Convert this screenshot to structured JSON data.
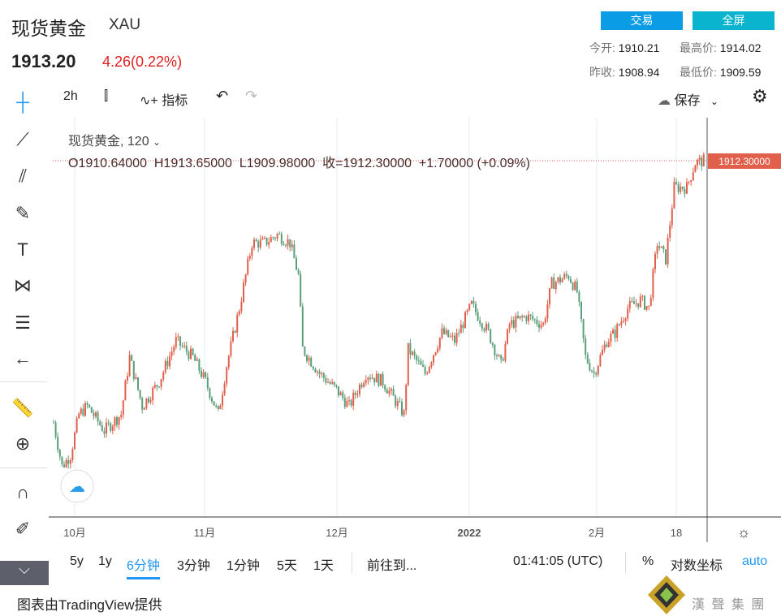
{
  "header": {
    "title": "现货黄金",
    "symbol": "XAU",
    "price": "1913.20",
    "change": "4.26(0.22%)",
    "trade_button": "交易",
    "fullscreen_button": "全屏",
    "stats": [
      {
        "label": "今开:",
        "value": "1910.21"
      },
      {
        "label": "最高价:",
        "value": "1914.02"
      },
      {
        "label": "昨收:",
        "value": "1908.94"
      },
      {
        "label": "最低价:",
        "value": "1909.59"
      }
    ]
  },
  "toolbar": {
    "interval": "2h",
    "indicators": "指标",
    "save": "保存"
  },
  "legend": {
    "title": "现货黄金, 120",
    "ohlc": "O1910.64000  H1913.65000  L1909.98000  收=1912.30000  +1.70000 (+0.09%)"
  },
  "price_label": "1912.30000",
  "x_labels": [
    "10月",
    "11月",
    "12月",
    "2022",
    "2月",
    "18"
  ],
  "bottom": {
    "ranges": [
      "5y",
      "1y",
      "6分钟",
      "3分钟",
      "1分钟",
      "5天",
      "1天"
    ],
    "active": "6分钟",
    "goto": "前往到...",
    "time": "01:41:05 (UTC)",
    "percent": "%",
    "log": "对数坐标",
    "auto": "auto"
  },
  "footer": {
    "credit": "图表由TradingView提供",
    "logo": "漢 聲 集 團"
  },
  "colors": {
    "up": "#e0604c",
    "down": "#5a9e7a",
    "accent": "#2196f3"
  },
  "chart_data": {
    "type": "candlestick",
    "note": "x = days since Oct 1 2021, y = approximate close price",
    "path": [
      [
        -5,
        1752
      ],
      [
        -3,
        1725
      ],
      [
        -1,
        1732
      ],
      [
        1,
        1757
      ],
      [
        3,
        1762
      ],
      [
        7,
        1747
      ],
      [
        11,
        1757
      ],
      [
        13,
        1792
      ],
      [
        16,
        1762
      ],
      [
        20,
        1777
      ],
      [
        24,
        1802
      ],
      [
        28,
        1792
      ],
      [
        31,
        1777
      ],
      [
        34,
        1757
      ],
      [
        36,
        1787
      ],
      [
        39,
        1822
      ],
      [
        42,
        1862
      ],
      [
        45,
        1862
      ],
      [
        48,
        1867
      ],
      [
        51,
        1862
      ],
      [
        53,
        1842
      ],
      [
        54,
        1797
      ],
      [
        58,
        1782
      ],
      [
        62,
        1772
      ],
      [
        65,
        1762
      ],
      [
        69,
        1782
      ],
      [
        73,
        1777
      ],
      [
        78,
        1757
      ],
      [
        79,
        1797
      ],
      [
        83,
        1782
      ],
      [
        87,
        1807
      ],
      [
        90,
        1802
      ],
      [
        94,
        1824
      ],
      [
        98,
        1807
      ],
      [
        101,
        1787
      ],
      [
        103,
        1812
      ],
      [
        107,
        1817
      ],
      [
        111,
        1812
      ],
      [
        113,
        1837
      ],
      [
        117,
        1842
      ],
      [
        119,
        1832
      ],
      [
        121,
        1792
      ],
      [
        123,
        1782
      ],
      [
        126,
        1802
      ],
      [
        128,
        1807
      ],
      [
        131,
        1822
      ],
      [
        134,
        1827
      ],
      [
        136,
        1822
      ],
      [
        138,
        1862
      ],
      [
        140,
        1852
      ],
      [
        142,
        1896
      ],
      [
        145,
        1896
      ],
      [
        147,
        1911
      ],
      [
        149,
        1912.3
      ]
    ],
    "last": 1912.3
  }
}
